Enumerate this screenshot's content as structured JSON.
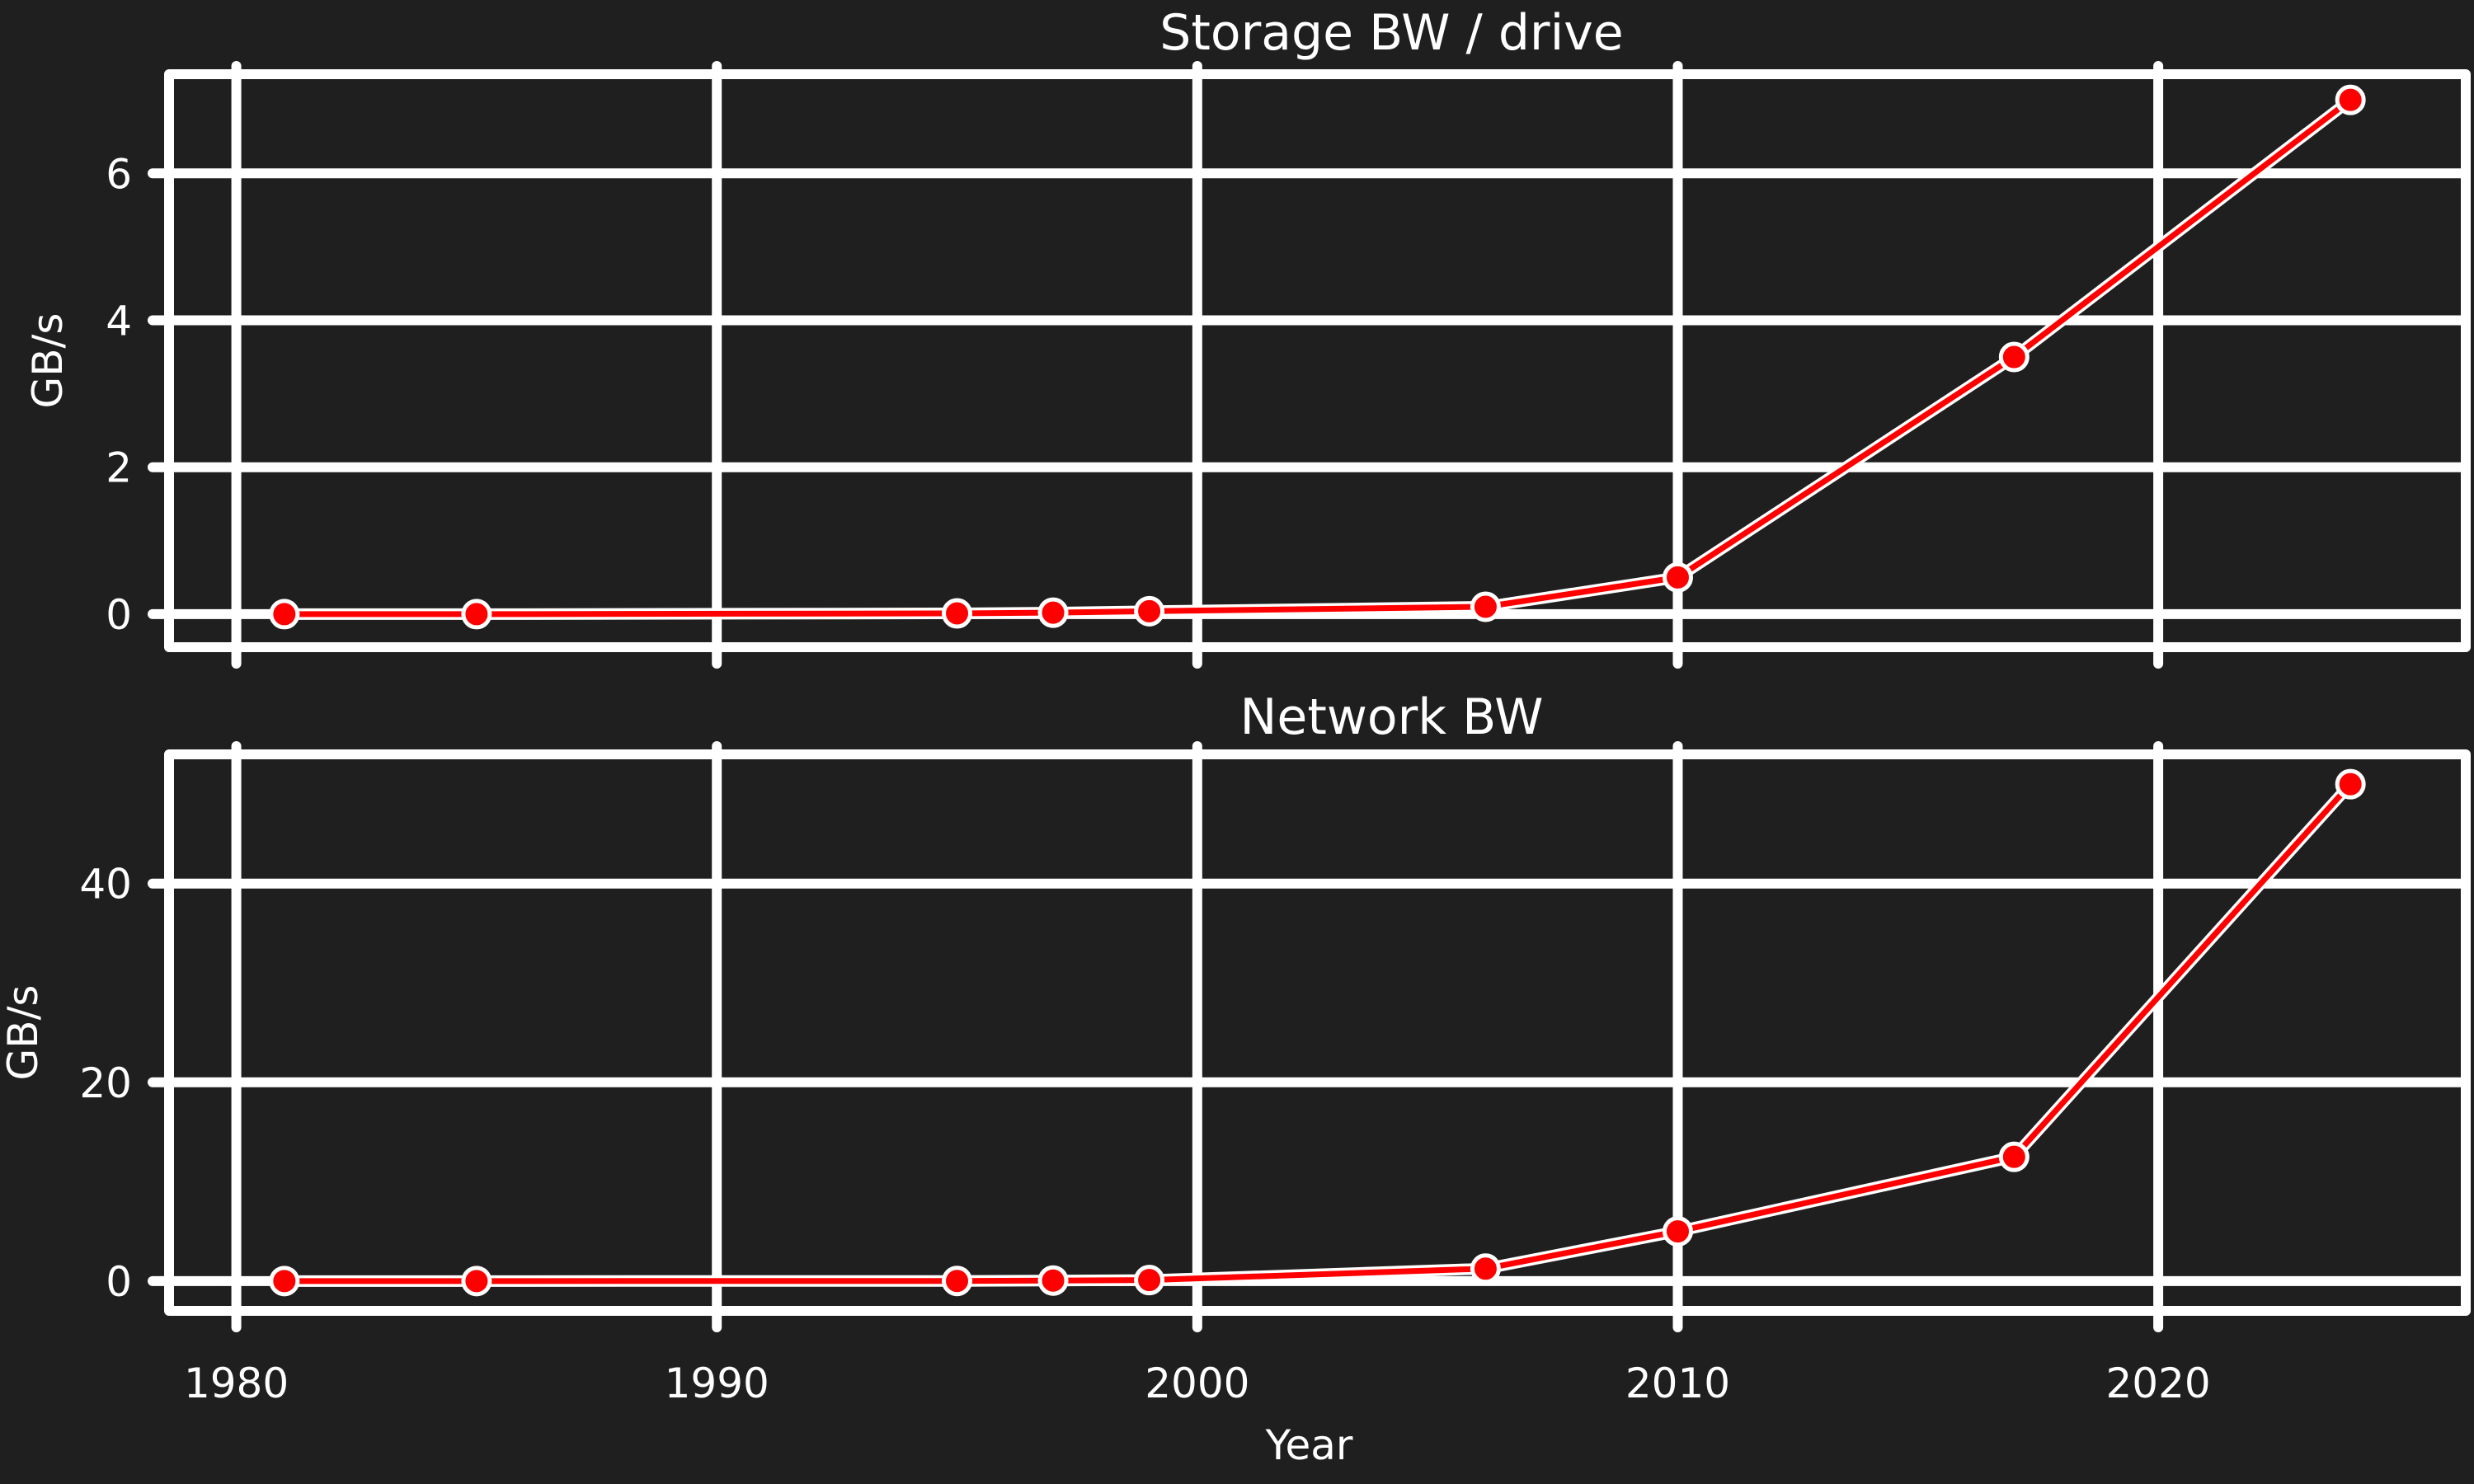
{
  "chart_data": [
    {
      "type": "line",
      "title": "Storage BW / drive",
      "xlabel": "",
      "ylabel": "GB/s",
      "x": [
        1981,
        1985,
        1995,
        1997,
        1999,
        2006,
        2010,
        2017,
        2024
      ],
      "series": [
        {
          "values": [
            0.0,
            0.0,
            0.01,
            0.02,
            0.04,
            0.1,
            0.5,
            3.5,
            7.0
          ]
        }
      ],
      "xlim": [
        1978.6,
        2026.4
      ],
      "ylim": [
        -0.45,
        7.35
      ],
      "xticks": [
        1980,
        1990,
        2000,
        2010,
        2020
      ],
      "yticks": [
        0,
        2,
        4,
        6
      ],
      "xtick_labels": [],
      "ytick_labels": [
        "0",
        "2",
        "4",
        "6"
      ],
      "grid": true,
      "colors": {
        "line": "#ff0000",
        "marker_edge": "#ffffff",
        "grid": "#ffffff",
        "background": "#1f1f1f"
      }
    },
    {
      "type": "line",
      "title": "Network BW",
      "xlabel": "Year",
      "ylabel": "GB/s",
      "x": [
        1981,
        1985,
        1995,
        1997,
        1999,
        2006,
        2010,
        2017,
        2024
      ],
      "series": [
        {
          "values": [
            0.0,
            0.0,
            0.01,
            0.05,
            0.1,
            1.25,
            5.0,
            12.5,
            50.0
          ]
        }
      ],
      "xlim": [
        1978.6,
        2026.4
      ],
      "ylim": [
        -3,
        53
      ],
      "xticks": [
        1980,
        1990,
        2000,
        2010,
        2020
      ],
      "yticks": [
        0,
        20,
        40
      ],
      "xtick_labels": [
        "1980",
        "1990",
        "2000",
        "2010",
        "2020"
      ],
      "ytick_labels": [
        "0",
        "20",
        "40"
      ],
      "grid": true,
      "colors": {
        "line": "#ff0000",
        "marker_edge": "#ffffff",
        "grid": "#ffffff",
        "background": "#1f1f1f"
      }
    }
  ]
}
